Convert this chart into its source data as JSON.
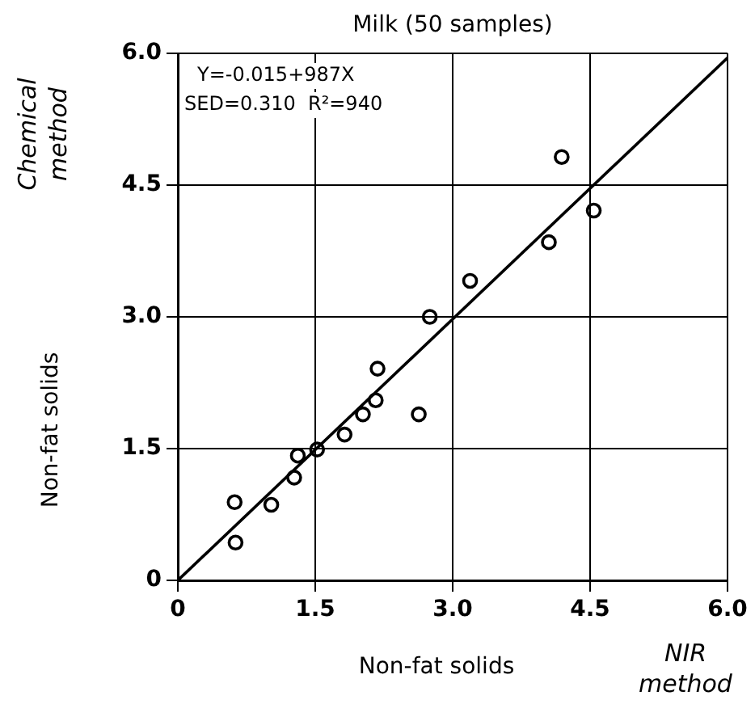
{
  "chart_data": {
    "type": "scatter",
    "title": "Milk (50 samples)",
    "xlabel": "Non-fat solids",
    "ylabel": "Non-fat solids",
    "annotations": [
      "Y=-0.015+987X",
      "SED=0.310  R²=940",
      "Chemical method",
      "NIR method"
    ],
    "xlim": [
      0,
      6
    ],
    "ylim": [
      0,
      6
    ],
    "xticks": [
      0,
      1.5,
      {
        "value": 3,
        "label": "3.0"
      },
      4.5,
      {
        "value": 6,
        "label": "6.0"
      }
    ],
    "yticks": [
      0,
      1.5,
      {
        "value": 3,
        "label": "3.0"
      },
      4.5,
      {
        "value": 6,
        "label": "6.0"
      }
    ],
    "grid": true,
    "marker": "circle",
    "legend": false,
    "series": [
      {
        "color": "#000000",
        "x": [
          0.63,
          0.62,
          1.02,
          1.27,
          1.31,
          1.52,
          1.82,
          2.02,
          2.16,
          2.18,
          2.63,
          2.75,
          3.19,
          4.05,
          4.54,
          4.19
        ],
        "values": [
          0.43,
          0.89,
          0.86,
          1.17,
          1.42,
          1.49,
          1.66,
          1.89,
          2.05,
          2.41,
          1.89,
          3.0,
          3.41,
          3.85,
          4.21,
          4.82
        ]
      },
      {
        "type": "line",
        "color": "#000000",
        "marker": "none",
        "x": [
          0,
          6
        ],
        "values": [
          0,
          5.95
        ]
      }
    ]
  }
}
